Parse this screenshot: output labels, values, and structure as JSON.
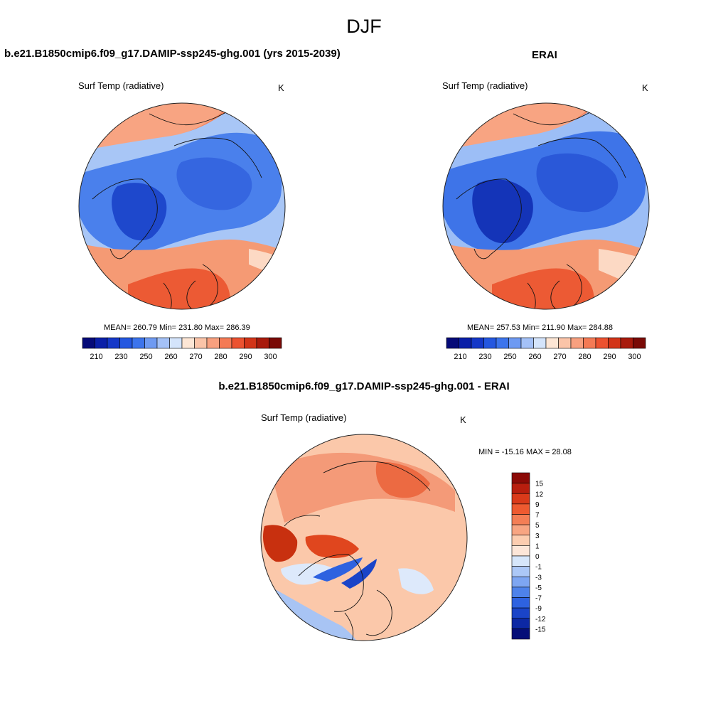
{
  "figure": {
    "season": "DJF"
  },
  "panels": {
    "model": {
      "title": "b.e21.B1850cmip6.f09_g17.DAMIP-ssp245-ghg.001 (yrs 2015-2039)",
      "variable": "Surf Temp (radiative)",
      "units": "K",
      "stats": "MEAN= 260.79  Min= 231.80  Max= 286.39",
      "stats_values": {
        "mean": 260.79,
        "min": 231.8,
        "max": 286.39
      }
    },
    "obs": {
      "title": "ERAI",
      "variable": "Surf Temp (radiative)",
      "units": "K",
      "stats": "MEAN= 257.53  Min= 211.90  Max= 284.88",
      "stats_values": {
        "mean": 257.53,
        "min": 211.9,
        "max": 284.88
      }
    },
    "diff": {
      "title": "b.e21.B1850cmip6.f09_g17.DAMIP-ssp245-ghg.001 - ERAI",
      "variable": "Surf Temp (radiative)",
      "units": "K",
      "stats": "MIN = -15.16 MAX =  28.08",
      "stats_values": {
        "min": -15.16,
        "max": 28.08
      }
    }
  },
  "colorbars": {
    "absolute": {
      "colors": [
        "#050A78",
        "#0A1FA8",
        "#1538C8",
        "#2457E0",
        "#3C74EC",
        "#6E9AF2",
        "#A4C1F7",
        "#D4E4FB",
        "#FDE6D5",
        "#FBC4A8",
        "#F8A07F",
        "#F47A55",
        "#EC5230",
        "#D23418",
        "#A81A0C",
        "#7A0A06"
      ],
      "tick_labels": [
        "210",
        "230",
        "250",
        "260",
        "270",
        "280",
        "290",
        "300"
      ]
    },
    "difference": {
      "colors": [
        "#8C0A06",
        "#B81E0E",
        "#DA3A1A",
        "#EE5A30",
        "#F47E55",
        "#F8A582",
        "#FCCDB0",
        "#FDE6D8",
        "#D6E6FA",
        "#ACC8F7",
        "#7EA6F2",
        "#4E82EA",
        "#2E62E0",
        "#1A44C8",
        "#0C28A4",
        "#050E78"
      ],
      "tick_labels": [
        "15",
        "12",
        "9",
        "7",
        "5",
        "3",
        "1",
        "0",
        "-1",
        "-3",
        "-5",
        "-7",
        "-9",
        "-12",
        "-15"
      ]
    }
  }
}
